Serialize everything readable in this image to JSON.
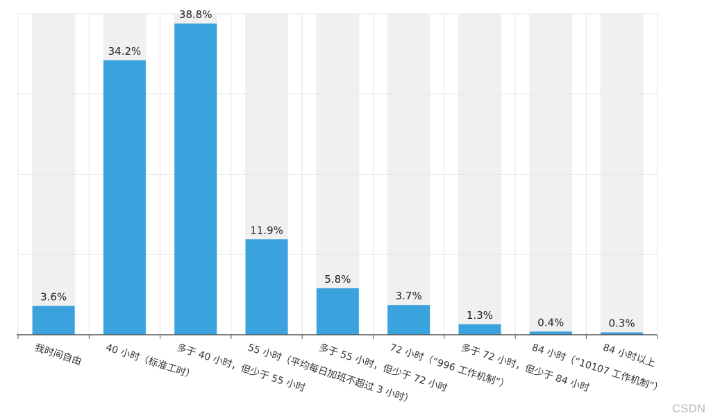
{
  "chart_data": {
    "type": "bar",
    "title": "",
    "xlabel": "",
    "ylabel": "",
    "ylim": [
      0,
      40
    ],
    "grid": true,
    "categories": [
      "我时间自由",
      "40 小时（标准工时）",
      "多于 40 小时，但少于 55 小时",
      "55 小时（平均每日加班不超过 3 小时）",
      "多于 55 小时，但少于 72 小时",
      "72 小时（“996 工作机制”）",
      "多于 72 小时，但少于 84 小时",
      "84 小时（“10107 工作机制”）",
      "84 小时以上"
    ],
    "values": [
      3.6,
      34.2,
      38.8,
      11.9,
      5.8,
      3.7,
      1.3,
      0.4,
      0.3
    ],
    "value_labels": [
      "3.6%",
      "34.2%",
      "38.8%",
      "11.9%",
      "5.8%",
      "3.7%",
      "1.3%",
      "0.4%",
      "0.3%"
    ],
    "colors": {
      "bar": "#3aa2dc",
      "background_column": "#f0f0f0",
      "grid": "#dde8ef",
      "axis": "#555555"
    }
  },
  "watermark": "CSDN"
}
